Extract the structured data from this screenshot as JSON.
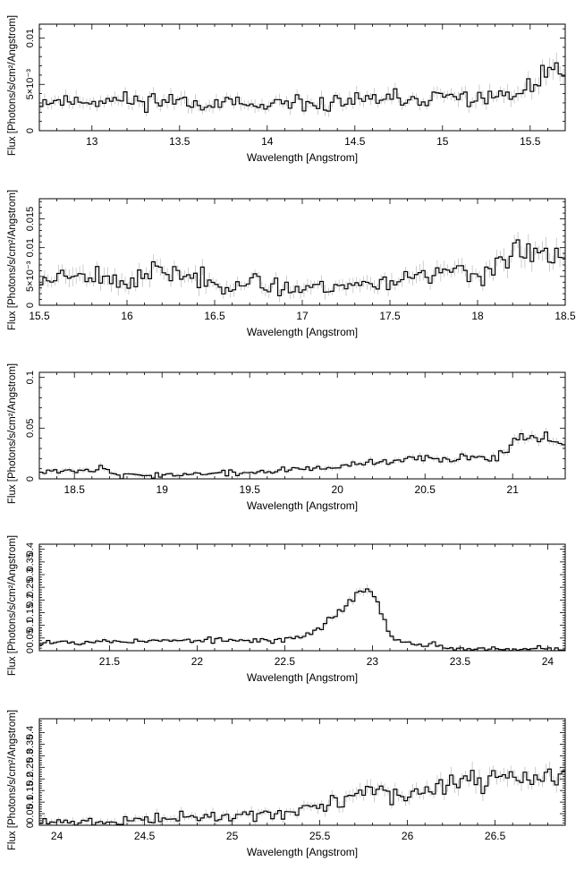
{
  "chart_data": [
    {
      "type": "line",
      "style": "step histogram with error bars",
      "xlabel": "Wavelength [Angstrom]",
      "ylabel": "Flux [Photons/s/cm²/Angstrom]",
      "xlim": [
        12.7,
        15.7
      ],
      "ylim": [
        0,
        0.0115
      ],
      "xticks": [
        13,
        13.5,
        14,
        14.5,
        15,
        15.5
      ],
      "xtick_labels": [
        "13",
        "13.5",
        "14",
        "14.5",
        "15",
        "15.5"
      ],
      "yticks": [
        0,
        0.005,
        0.01
      ],
      "ytick_labels": [
        "0",
        "5×10⁻³",
        "0.01"
      ],
      "profile_x": [
        12.7,
        13.5,
        14.0,
        14.5,
        15.0,
        15.4,
        15.55,
        15.65,
        15.7
      ],
      "profile_y": [
        0.0032,
        0.0033,
        0.0025,
        0.0032,
        0.0035,
        0.0037,
        0.005,
        0.0072,
        0.006
      ],
      "noise": 0.001,
      "seed": 11
    },
    {
      "type": "line",
      "style": "step histogram with error bars",
      "xlabel": "Wavelength [Angstrom]",
      "ylabel": "Flux [Photons/s/cm²/Angstrom]",
      "xlim": [
        15.5,
        18.5
      ],
      "ylim": [
        0,
        0.0185
      ],
      "xticks": [
        15.5,
        16,
        16.5,
        17,
        17.5,
        18,
        18.5
      ],
      "xtick_labels": [
        "15.5",
        "16",
        "16.5",
        "17",
        "17.5",
        "18",
        "18.5"
      ],
      "yticks": [
        0,
        0.005,
        0.01,
        0.015
      ],
      "ytick_labels": [
        "0",
        "5×10⁻³",
        "0.01",
        "0.015"
      ],
      "profile_x": [
        15.5,
        15.7,
        16.0,
        16.2,
        16.5,
        17.0,
        17.5,
        17.7,
        18.0,
        18.2,
        18.5
      ],
      "profile_y": [
        0.004,
        0.006,
        0.004,
        0.006,
        0.004,
        0.003,
        0.004,
        0.006,
        0.005,
        0.009,
        0.008
      ],
      "noise": 0.0018,
      "seed": 23
    },
    {
      "type": "line",
      "style": "step histogram with error bars",
      "xlabel": "Wavelength [Angstrom]",
      "ylabel": "Flux [Photons/s/cm²/Angstrom]",
      "xlim": [
        18.3,
        21.3
      ],
      "ylim": [
        0,
        0.105
      ],
      "xticks": [
        18.5,
        19,
        19.5,
        20,
        20.5,
        21
      ],
      "xtick_labels": [
        "18.5",
        "19",
        "19.5",
        "20",
        "20.5",
        "21"
      ],
      "yticks": [
        0,
        0.05,
        0.1
      ],
      "ytick_labels": [
        "0",
        "0.05",
        "0.1"
      ],
      "profile_x": [
        18.3,
        18.7,
        18.75,
        19.5,
        20.0,
        20.5,
        20.9,
        21.0,
        21.1,
        21.3
      ],
      "profile_y": [
        0.008,
        0.01,
        0.003,
        0.006,
        0.012,
        0.02,
        0.022,
        0.035,
        0.045,
        0.035
      ],
      "noise": 0.0045,
      "seed": 37
    },
    {
      "type": "line",
      "style": "step histogram with error bars",
      "xlabel": "Wavelength [Angstrom]",
      "ylabel": "Flux [Photons/s/cm²/Angstrom]",
      "xlim": [
        21.1,
        24.1
      ],
      "ylim": [
        0,
        0.42
      ],
      "xticks": [
        21.5,
        22,
        22.5,
        23,
        23.5,
        24
      ],
      "xtick_labels": [
        "21.5",
        "22",
        "22.5",
        "23",
        "23.5",
        "24"
      ],
      "yticks": [
        0,
        0.05,
        0.1,
        0.15,
        0.2,
        0.25,
        0.3,
        0.35,
        0.4
      ],
      "ytick_labels": [
        "0",
        "0.05",
        "0.1",
        "0.15",
        "0.2",
        "0.25",
        "0.3",
        "0.35",
        "0.4"
      ],
      "profile_x": [
        21.1,
        22.0,
        22.5,
        22.65,
        22.75,
        22.85,
        22.92,
        22.98,
        23.05,
        23.12,
        23.3,
        23.35,
        23.45,
        24.1
      ],
      "profile_y": [
        0.035,
        0.04,
        0.04,
        0.07,
        0.12,
        0.18,
        0.22,
        0.26,
        0.15,
        0.04,
        0.015,
        0.03,
        0.008,
        0.008
      ],
      "noise": 0.016,
      "seed": 53
    },
    {
      "type": "line",
      "style": "step histogram with error bars",
      "xlabel": "Wavelength [Angstrom]",
      "ylabel": "Flux [Photons/s/cm²/Angstrom]",
      "xlim": [
        23.9,
        26.9
      ],
      "ylim": [
        0,
        0.46
      ],
      "xticks": [
        24,
        24.5,
        25,
        25.5,
        26,
        26.5
      ],
      "xtick_labels": [
        "24",
        "24.5",
        "25",
        "25.5",
        "26",
        "26.5"
      ],
      "yticks": [
        0,
        0.05,
        0.1,
        0.15,
        0.2,
        0.25,
        0.3,
        0.35,
        0.4
      ],
      "ytick_labels": [
        "0",
        "0.05",
        "0.1",
        "0.15",
        "0.2",
        "0.25",
        "0.3",
        "0.35",
        "0.4"
      ],
      "profile_x": [
        23.9,
        24.3,
        24.6,
        25.0,
        25.4,
        25.7,
        25.8,
        25.9,
        26.2,
        26.5,
        26.9
      ],
      "profile_y": [
        0.01,
        0.015,
        0.03,
        0.04,
        0.06,
        0.13,
        0.16,
        0.12,
        0.17,
        0.2,
        0.21
      ],
      "noise": 0.035,
      "seed": 71
    }
  ]
}
